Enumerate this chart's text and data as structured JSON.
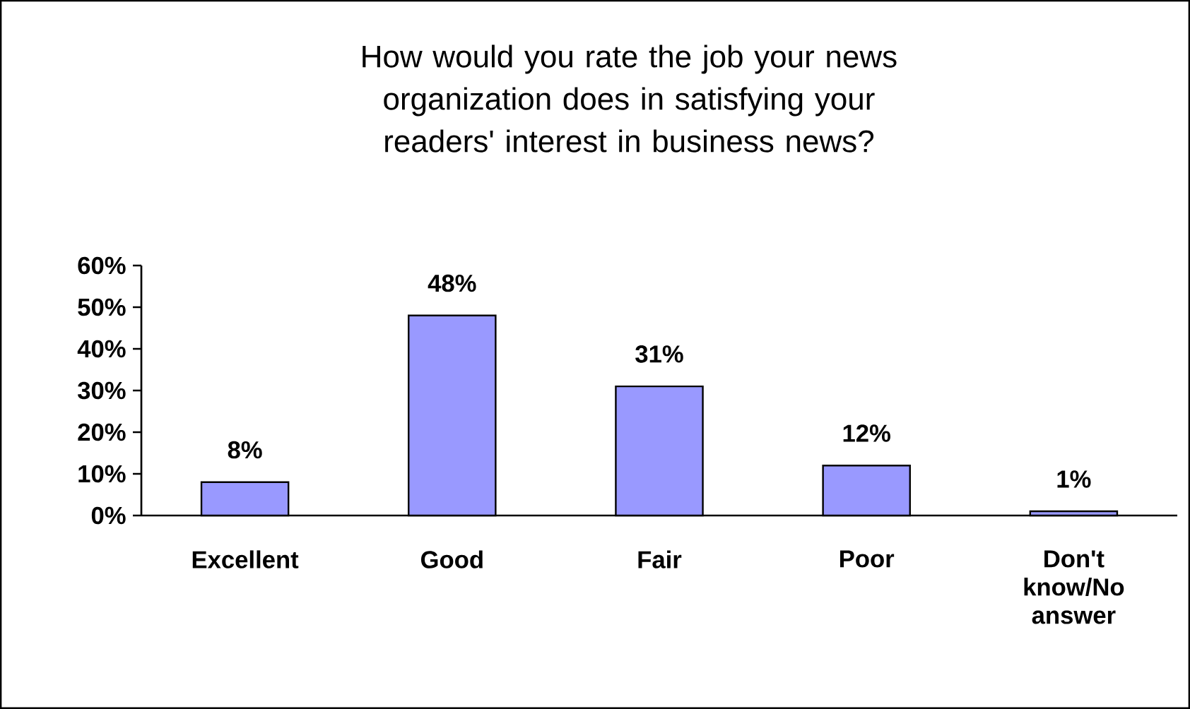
{
  "chart_data": {
    "type": "bar",
    "title": "How would you rate the job your news organization does in satisfying your readers' interest in business news?",
    "categories": [
      "Excellent",
      "Good",
      "Fair",
      "Poor",
      "Don't know/No answer"
    ],
    "values": [
      8,
      48,
      31,
      12,
      1
    ],
    "value_labels": [
      "8%",
      "48%",
      "31%",
      "12%",
      "1%"
    ],
    "color": "#9999ff",
    "ylim": [
      0,
      60
    ],
    "yticks": [
      {
        "value": 0,
        "label": "0%"
      },
      {
        "value": 10,
        "label": "10%"
      },
      {
        "value": 20,
        "label": "20%"
      },
      {
        "value": 30,
        "label": "30%"
      },
      {
        "value": 40,
        "label": "40%"
      },
      {
        "value": 50,
        "label": "50%"
      },
      {
        "value": 60,
        "label": "60%"
      }
    ],
    "grid": false
  }
}
